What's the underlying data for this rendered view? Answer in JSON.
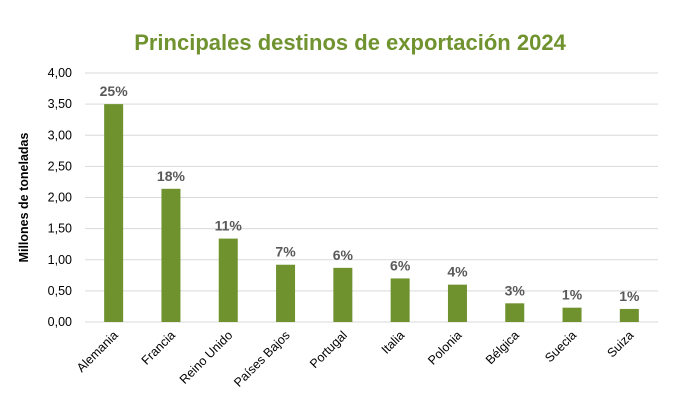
{
  "colors": {
    "title": "#70932f",
    "bar": "#6f922f",
    "grid": "#d9d9d9",
    "label": "#595959"
  },
  "chart_data": {
    "type": "bar",
    "title": "Principales destinos de exportación 2024",
    "xlabel": "",
    "ylabel": "Millones de toneladas",
    "ylim": [
      0,
      4
    ],
    "yticks": [
      "0,00",
      "0,50",
      "1,00",
      "1,50",
      "2,00",
      "2,50",
      "3,00",
      "3,50",
      "4,00"
    ],
    "grid": true,
    "categories": [
      "Alemania",
      "Francia",
      "Reino Unido",
      "Países Bajos",
      "Portugal",
      "Italia",
      "Polonia",
      "Bélgica",
      "Suecia",
      "Suiza"
    ],
    "values": [
      3.5,
      2.14,
      1.34,
      0.92,
      0.87,
      0.7,
      0.6,
      0.3,
      0.23,
      0.21
    ],
    "data_labels": [
      "25%",
      "18%",
      "11%",
      "7%",
      "6%",
      "6%",
      "4%",
      "3%",
      "1%",
      "1%"
    ]
  }
}
